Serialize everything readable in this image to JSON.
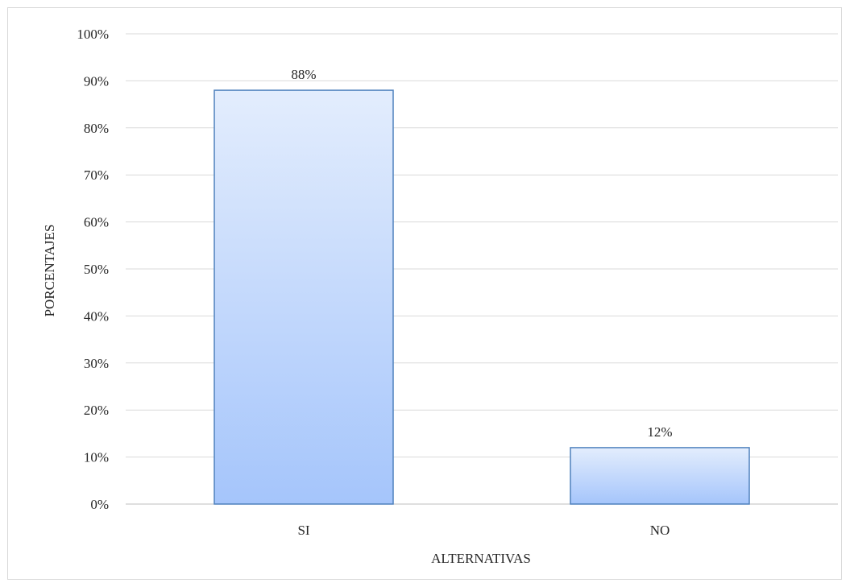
{
  "chart_data": {
    "type": "bar",
    "categories": [
      "SI",
      "NO"
    ],
    "values": [
      88,
      12
    ],
    "data_labels": [
      "88%",
      "12%"
    ],
    "title": "",
    "xlabel": "ALTERNATIVAS",
    "ylabel": "PORCENTAJES",
    "ylim": [
      0,
      100
    ],
    "ytick_step": 10,
    "ytick_suffix": "%",
    "grid": true,
    "legend": "none",
    "colors": {
      "bar_top": "#e3edfd",
      "bar_bottom": "#a5c5fb",
      "bar_stroke": "#4f81bd",
      "grid": "#d9d9d9",
      "axis": "#bfbfbf"
    }
  }
}
